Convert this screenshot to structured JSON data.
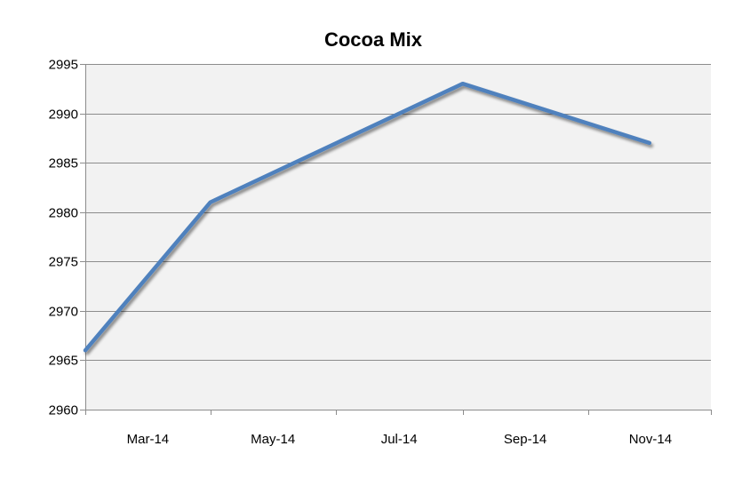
{
  "chart_data": {
    "type": "line",
    "title": "Cocoa Mix",
    "xlabel": "",
    "ylabel": "",
    "x_tick_labels": [
      "Mar-14",
      "May-14",
      "Jul-14",
      "Sep-14",
      "Nov-14"
    ],
    "y_tick_labels": [
      "2960",
      "2965",
      "2970",
      "2975",
      "2980",
      "2985",
      "2990",
      "2995"
    ],
    "ylim": [
      2960,
      2995
    ],
    "y_step": 5,
    "xlim": [
      "2014-03-01",
      "2014-12-31"
    ],
    "grid": "horizontal",
    "legend": "none",
    "series": [
      {
        "color": "#4f81bd",
        "points": [
          {
            "x": "2014-03-01",
            "y": 2966
          },
          {
            "x": "2014-05-01",
            "y": 2981
          },
          {
            "x": "2014-09-01",
            "y": 2993
          },
          {
            "x": "2014-12-01",
            "y": 2987
          }
        ]
      }
    ],
    "colors": {
      "plot_background": "#f2f2f2",
      "gridline": "#8c8c8c",
      "axis": "#8c8c8c",
      "line": "#4f81bd"
    }
  }
}
